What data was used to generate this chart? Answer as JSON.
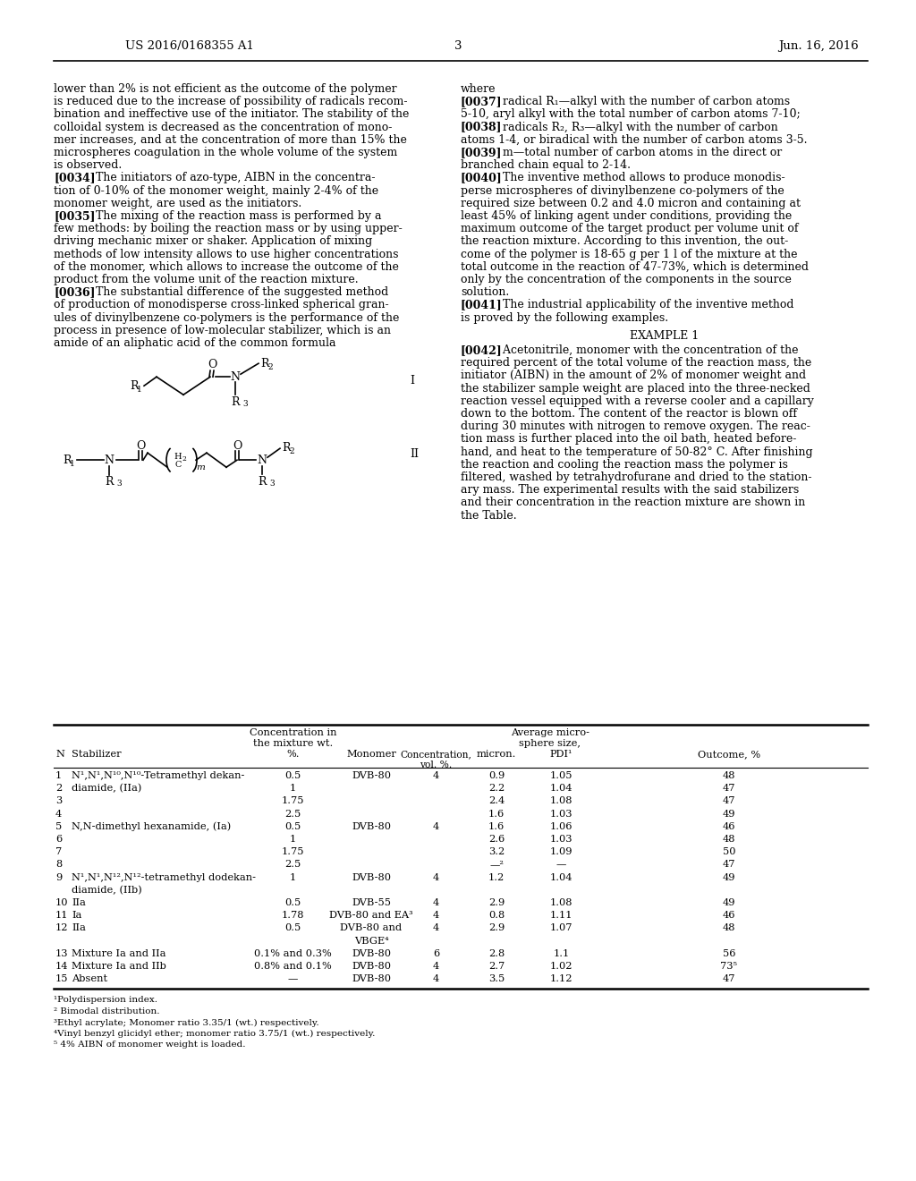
{
  "header_left": "US 2016/0168355 A1",
  "header_right": "Jun. 16, 2016",
  "page_number": "3",
  "left_col_lines": [
    {
      "bold": false,
      "text": "lower than 2% is not efficient as the outcome of the polymer"
    },
    {
      "bold": false,
      "text": "is reduced due to the increase of possibility of radicals recom-"
    },
    {
      "bold": false,
      "text": "bination and ineffective use of the initiator. The stability of the"
    },
    {
      "bold": false,
      "text": "colloidal system is decreased as the concentration of mono-"
    },
    {
      "bold": false,
      "text": "mer increases, and at the concentration of more than 15% the"
    },
    {
      "bold": false,
      "text": "microspheres coagulation in the whole volume of the system"
    },
    {
      "bold": false,
      "text": "is observed."
    },
    {
      "bold": true,
      "tag": "[0034]",
      "rest": "    The initiators of azo-type, AIBN in the concentra-"
    },
    {
      "bold": false,
      "text": "tion of 0-10% of the monomer weight, mainly 2-4% of the"
    },
    {
      "bold": false,
      "text": "monomer weight, are used as the initiators."
    },
    {
      "bold": true,
      "tag": "[0035]",
      "rest": "    The mixing of the reaction mass is performed by a"
    },
    {
      "bold": false,
      "text": "few methods: by boiling the reaction mass or by using upper-"
    },
    {
      "bold": false,
      "text": "driving mechanic mixer or shaker. Application of mixing"
    },
    {
      "bold": false,
      "text": "methods of low intensity allows to use higher concentrations"
    },
    {
      "bold": false,
      "text": "of the monomer, which allows to increase the outcome of the"
    },
    {
      "bold": false,
      "text": "product from the volume unit of the reaction mixture."
    },
    {
      "bold": true,
      "tag": "[0036]",
      "rest": "    The substantial difference of the suggested method"
    },
    {
      "bold": false,
      "text": "of production of monodisperse cross-linked spherical gran-"
    },
    {
      "bold": false,
      "text": "ules of divinylbenzene co-polymers is the performance of the"
    },
    {
      "bold": false,
      "text": "process in presence of low-molecular stabilizer, which is an"
    },
    {
      "bold": false,
      "text": "amide of an aliphatic acid of the common formula"
    }
  ],
  "right_col_lines": [
    {
      "bold": false,
      "text": "where"
    },
    {
      "bold": true,
      "tag": "[0037]",
      "rest": "    radical R₁—alkyl with the number of carbon atoms"
    },
    {
      "bold": false,
      "text": "5-10, aryl alkyl with the total number of carbon atoms 7-10;"
    },
    {
      "bold": true,
      "tag": "[0038]",
      "rest": "    radicals R₂, R₃—alkyl with the number of carbon"
    },
    {
      "bold": false,
      "text": "atoms 1-4, or biradical with the number of carbon atoms 3-5."
    },
    {
      "bold": true,
      "tag": "[0039]",
      "rest": "    m—total number of carbon atoms in the direct or"
    },
    {
      "bold": false,
      "text": "branched chain equal to 2-14."
    },
    {
      "bold": true,
      "tag": "[0040]",
      "rest": "    The inventive method allows to produce monodis-"
    },
    {
      "bold": false,
      "text": "perse microspheres of divinylbenzene co-polymers of the"
    },
    {
      "bold": false,
      "text": "required size between 0.2 and 4.0 micron and containing at"
    },
    {
      "bold": false,
      "text": "least 45% of linking agent under conditions, providing the"
    },
    {
      "bold": false,
      "text": "maximum outcome of the target product per volume unit of"
    },
    {
      "bold": false,
      "text": "the reaction mixture. According to this invention, the out-"
    },
    {
      "bold": false,
      "text": "come of the polymer is 18-65 g per 1 l of the mixture at the"
    },
    {
      "bold": false,
      "text": "total outcome in the reaction of 47-73%, which is determined"
    },
    {
      "bold": false,
      "text": "only by the concentration of the components in the source"
    },
    {
      "bold": false,
      "text": "solution."
    },
    {
      "bold": true,
      "tag": "[0041]",
      "rest": "    The industrial applicability of the inventive method"
    },
    {
      "bold": false,
      "text": "is proved by the following examples."
    }
  ],
  "example_header": "EXAMPLE 1",
  "example_lines": [
    {
      "bold": true,
      "tag": "[0042]",
      "rest": "    Acetonitrile, monomer with the concentration of the"
    },
    {
      "bold": false,
      "text": "required percent of the total volume of the reaction mass, the"
    },
    {
      "bold": false,
      "text": "initiator (AIBN) in the amount of 2% of monomer weight and"
    },
    {
      "bold": false,
      "text": "the stabilizer sample weight are placed into the three-necked"
    },
    {
      "bold": false,
      "text": "reaction vessel equipped with a reverse cooler and a capillary"
    },
    {
      "bold": false,
      "text": "down to the bottom. The content of the reactor is blown off"
    },
    {
      "bold": false,
      "text": "during 30 minutes with nitrogen to remove oxygen. The reac-"
    },
    {
      "bold": false,
      "text": "tion mass is further placed into the oil bath, heated before-"
    },
    {
      "bold": false,
      "text": "hand, and heat to the temperature of 50-82° C. After finishing"
    },
    {
      "bold": false,
      "text": "the reaction and cooling the reaction mass the polymer is"
    },
    {
      "bold": false,
      "text": "filtered, washed by tetrahydrofurane and dried to the station-"
    },
    {
      "bold": false,
      "text": "ary mass. The experimental results with the said stabilizers"
    },
    {
      "bold": false,
      "text": "and their concentration in the reaction mixture are shown in"
    },
    {
      "bold": false,
      "text": "the Table."
    }
  ],
  "table_rows": [
    {
      "N": "1",
      "stab": "N¹,N¹,N¹⁰,N¹⁰-Tetramethyl dekan-",
      "conc": "0.5",
      "mono": "DVB-80",
      "vcol": "4",
      "size": "0.9",
      "pdi": "1.05",
      "out": "48"
    },
    {
      "N": "2",
      "stab": "diamide, (IIa)",
      "conc": "1",
      "mono": "",
      "vcol": "",
      "size": "2.2",
      "pdi": "1.04",
      "out": "47"
    },
    {
      "N": "3",
      "stab": "",
      "conc": "1.75",
      "mono": "",
      "vcol": "",
      "size": "2.4",
      "pdi": "1.08",
      "out": "47"
    },
    {
      "N": "4",
      "stab": "",
      "conc": "2.5",
      "mono": "",
      "vcol": "",
      "size": "1.6",
      "pdi": "1.03",
      "out": "49"
    },
    {
      "N": "5",
      "stab": "N,N-dimethyl hexanamide, (Ia)",
      "conc": "0.5",
      "mono": "DVB-80",
      "vcol": "4",
      "size": "1.6",
      "pdi": "1.06",
      "out": "46"
    },
    {
      "N": "6",
      "stab": "",
      "conc": "1",
      "mono": "",
      "vcol": "",
      "size": "2.6",
      "pdi": "1.03",
      "out": "48"
    },
    {
      "N": "7",
      "stab": "",
      "conc": "1.75",
      "mono": "",
      "vcol": "",
      "size": "3.2",
      "pdi": "1.09",
      "out": "50"
    },
    {
      "N": "8",
      "stab": "",
      "conc": "2.5",
      "mono": "",
      "vcol": "",
      "size": "—²",
      "pdi": "—",
      "out": "47"
    },
    {
      "N": "9",
      "stab": "N¹,N¹,N¹²,N¹²-tetramethyl dodekan-",
      "conc": "1",
      "mono": "DVB-80",
      "vcol": "4",
      "size": "1.2",
      "pdi": "1.04",
      "out": "49"
    },
    {
      "N": "",
      "stab": "diamide, (IIb)",
      "conc": "",
      "mono": "",
      "vcol": "",
      "size": "",
      "pdi": "",
      "out": ""
    },
    {
      "N": "10",
      "stab": "IIa",
      "conc": "0.5",
      "mono": "DVB-55",
      "vcol": "4",
      "size": "2.9",
      "pdi": "1.08",
      "out": "49"
    },
    {
      "N": "11",
      "stab": "Ia",
      "conc": "1.78",
      "mono": "DVB-80 and EA³",
      "vcol": "4",
      "size": "0.8",
      "pdi": "1.11",
      "out": "46"
    },
    {
      "N": "12",
      "stab": "IIa",
      "conc": "0.5",
      "mono": "DVB-80 and",
      "vcol": "4",
      "size": "2.9",
      "pdi": "1.07",
      "out": "48"
    },
    {
      "N": "",
      "stab": "",
      "conc": "",
      "mono": "VBGE⁴",
      "vcol": "",
      "size": "",
      "pdi": "",
      "out": ""
    },
    {
      "N": "13",
      "stab": "Mixture Ia and IIa",
      "conc": "0.1% and 0.3%",
      "mono": "DVB-80",
      "vcol": "6",
      "size": "2.8",
      "pdi": "1.1",
      "out": "56"
    },
    {
      "N": "14",
      "stab": "Mixture Ia and IIb",
      "conc": "0.8% and 0.1%",
      "mono": "DVB-80",
      "vcol": "4",
      "size": "2.7",
      "pdi": "1.02",
      "out": "73⁵"
    },
    {
      "N": "15",
      "stab": "Absent",
      "conc": "—",
      "mono": "DVB-80",
      "vcol": "4",
      "size": "3.5",
      "pdi": "1.12",
      "out": "47"
    }
  ],
  "footnotes": [
    "¹Polydispersion index.",
    "² Bimodal distribution.",
    "³Ethyl acrylate; Monomer ratio 3.35/1 (wt.) respectively.",
    "⁴Vinyl benzyl glicidyl ether; monomer ratio 3.75/1 (wt.) respectively.",
    "⁵ 4% AIBN of monomer weight is loaded."
  ]
}
